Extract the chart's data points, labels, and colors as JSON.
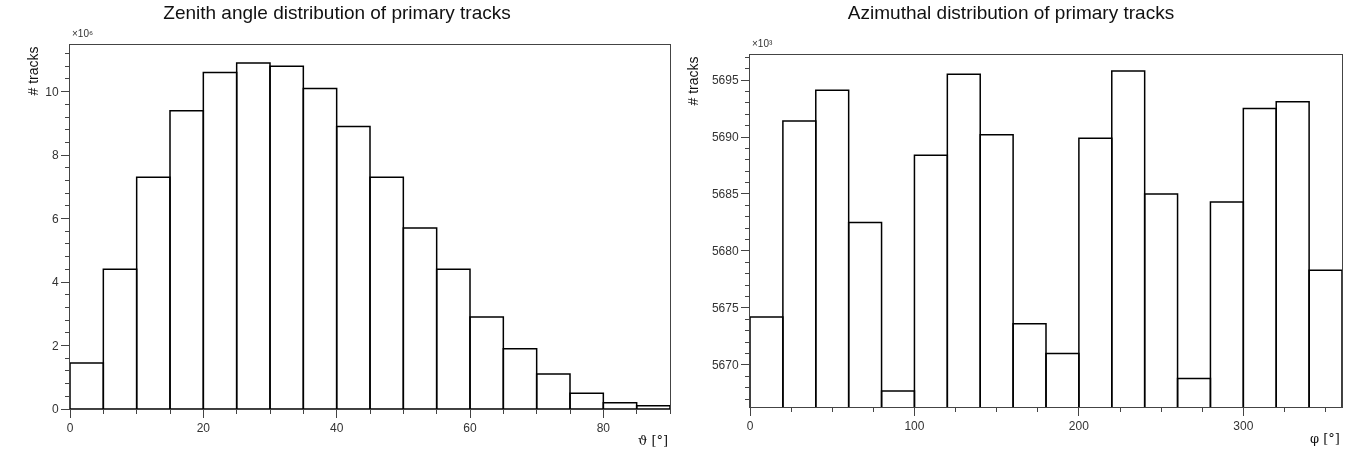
{
  "chart_data": [
    {
      "type": "histogram",
      "title": "Zenith angle distribution of primary tracks",
      "xlabel": "ϑ [°]",
      "ylabel": "# tracks",
      "annotations": [
        "×10⁶"
      ],
      "color": "#000000",
      "bins": [
        0,
        5,
        10,
        15,
        20,
        25,
        30,
        35,
        40,
        45,
        50,
        55,
        60,
        65,
        70,
        75,
        80,
        85,
        90
      ],
      "values": [
        1.45,
        4.4,
        7.3,
        9.4,
        10.6,
        10.9,
        10.8,
        10.1,
        8.9,
        7.3,
        5.7,
        4.4,
        2.9,
        1.9,
        1.1,
        0.5,
        0.2,
        0.1
      ],
      "xlim": [
        0,
        90
      ],
      "xticks": [
        0,
        20,
        40,
        60,
        80
      ],
      "ylim": [
        0,
        11.47
      ],
      "yticks": [
        0,
        2,
        4,
        6,
        8,
        10
      ],
      "grid": false
    },
    {
      "type": "histogram",
      "title": "Azimuthal distribution of primary tracks",
      "xlabel": "φ [°]",
      "ylabel": "# tracks",
      "annotations": [
        "×10³"
      ],
      "color": "#000000",
      "bins": [
        0,
        20,
        40,
        60,
        80,
        100,
        120,
        140,
        160,
        180,
        200,
        220,
        240,
        260,
        280,
        300,
        320,
        340,
        360
      ],
      "values": [
        5674.2,
        5691.4,
        5694.1,
        5682.5,
        5667.7,
        5688.4,
        5695.5,
        5690.2,
        5673.6,
        5671.0,
        5689.9,
        5695.8,
        5685.0,
        5668.8,
        5684.3,
        5692.5,
        5693.1,
        5678.3
      ],
      "xlim": [
        0,
        360
      ],
      "xticks": [
        0,
        100,
        200,
        300
      ],
      "ylim": [
        5666.3,
        5697.2
      ],
      "yticks": [
        5670,
        5675,
        5680,
        5685,
        5690,
        5695
      ],
      "grid": false
    }
  ]
}
